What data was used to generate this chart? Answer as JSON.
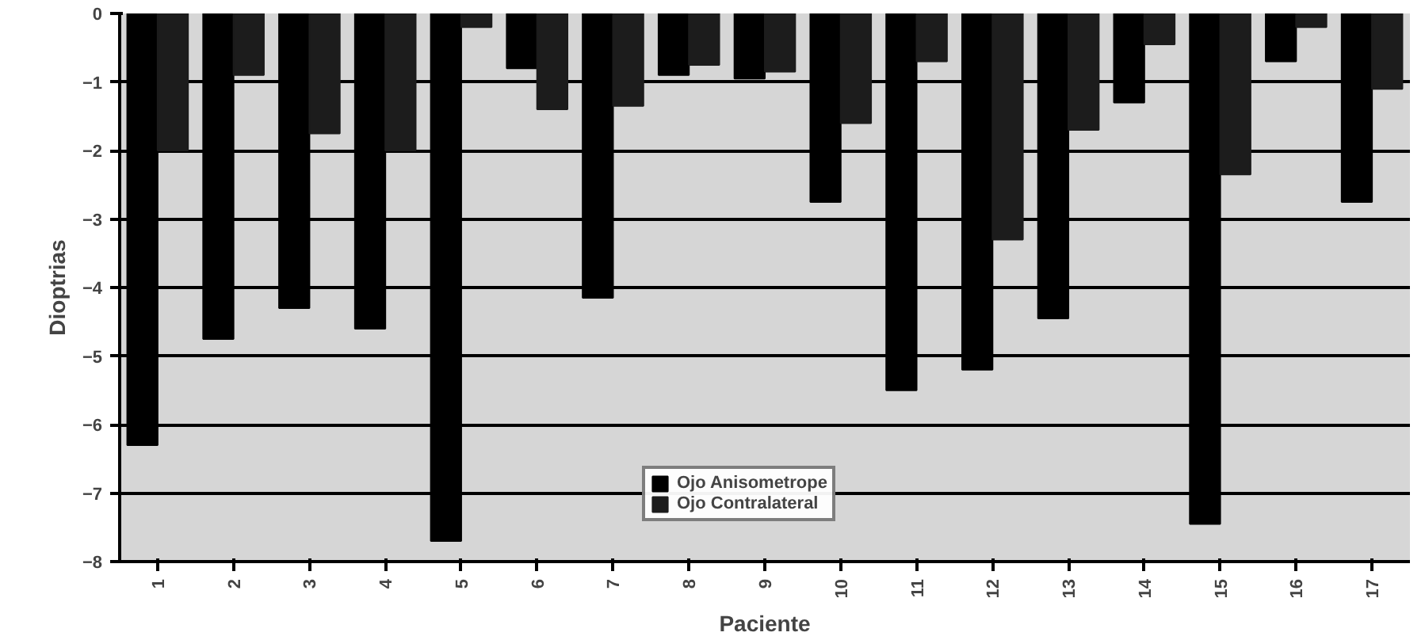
{
  "chart_data": {
    "type": "bar",
    "xlabel": "Paciente",
    "ylabel": "Dioptrias",
    "categories": [
      "1",
      "2",
      "3",
      "4",
      "5",
      "6",
      "7",
      "8",
      "9",
      "10",
      "11",
      "12",
      "13",
      "14",
      "15",
      "16",
      "17"
    ],
    "series": [
      {
        "name": "Ojo Anisometrope",
        "color": "#000000",
        "values": [
          -6.3,
          -4.75,
          -4.3,
          -4.6,
          -7.7,
          -0.8,
          -4.15,
          -0.9,
          -0.95,
          -2.75,
          -5.5,
          -5.2,
          -4.45,
          -1.3,
          -7.45,
          -0.7,
          -2.75
        ]
      },
      {
        "name": "Ojo Contralateral",
        "color": "#1c1c1c",
        "values": [
          -2.0,
          -0.9,
          -1.75,
          -2.0,
          -0.2,
          -1.4,
          -1.35,
          -0.75,
          -0.85,
          -1.6,
          -0.7,
          -3.3,
          -1.7,
          -0.45,
          -2.35,
          -0.2,
          -1.1
        ]
      }
    ],
    "ylim": [
      -8,
      0
    ],
    "yticks": [
      -8,
      -7,
      -6,
      -5,
      -4,
      -3,
      -2,
      -1,
      0
    ],
    "grid": "y",
    "legend": "bottom"
  }
}
